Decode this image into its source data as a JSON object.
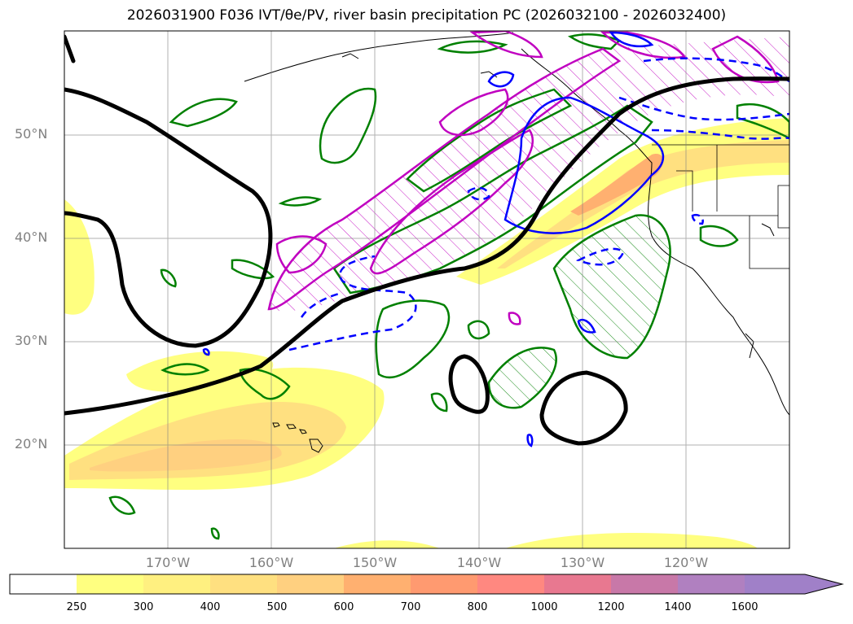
{
  "title": "2026031900 F036 IVT/θe/PV, river basin precipitation PC (2026032100 - 2026032400)",
  "map": {
    "lat_labels": [
      "50°N",
      "40°N",
      "30°N",
      "20°N"
    ],
    "lon_labels": [
      "170°W",
      "160°W",
      "150°W",
      "140°W",
      "130°W",
      "120°W"
    ],
    "gridlines": true
  },
  "colorbar": {
    "ticks": [
      "250",
      "300",
      "400",
      "500",
      "600",
      "700",
      "800",
      "1000",
      "1200",
      "1400",
      "1600"
    ],
    "colors": [
      "#ffffff",
      "#ffff80",
      "#fff080",
      "#ffe080",
      "#ffd080",
      "#ffb070",
      "#ff9a70",
      "#ff8880",
      "#e87890",
      "#c878a8",
      "#b080c0",
      "#a080c8"
    ],
    "extend": "max"
  },
  "contour_colors": {
    "theta_e": "#000000",
    "pv_green": "#008000",
    "pv_magenta": "#c000c0",
    "pv_blue": "#0000ff"
  }
}
